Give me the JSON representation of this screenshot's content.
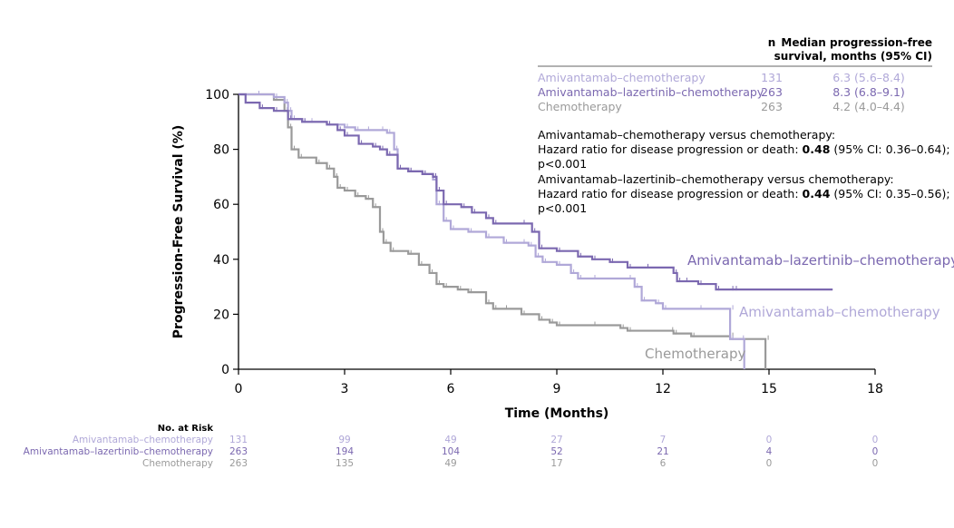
{
  "chart_data": {
    "type": "line",
    "subtype": "kaplan-meier",
    "xlabel": "Time (Months)",
    "ylabel": "Progression-Free Survival (%)",
    "xlim": [
      0,
      18
    ],
    "ylim": [
      0,
      100
    ],
    "xticks": [
      "0",
      "3",
      "6",
      "9",
      "12",
      "15",
      "18"
    ],
    "yticks": [
      "0",
      "20",
      "40",
      "60",
      "80",
      "100"
    ],
    "colors": {
      "amivantamab_chemo": "#b0a8d8",
      "lazertinib_chemo": "#7b68b0",
      "chemo": "#9a9a9a",
      "axis": "#000000"
    },
    "series": [
      {
        "key": "ami",
        "name": "Amivantamab–chemotherapy",
        "color": "#b0a8d8",
        "points": [
          [
            0,
            100
          ],
          [
            0.5,
            100
          ],
          [
            1,
            99
          ],
          [
            1.3,
            97
          ],
          [
            1.4,
            94
          ],
          [
            1.5,
            91
          ],
          [
            1.8,
            90
          ],
          [
            2,
            90
          ],
          [
            2.5,
            89
          ],
          [
            3,
            88
          ],
          [
            3.3,
            87
          ],
          [
            3.6,
            87
          ],
          [
            4,
            87
          ],
          [
            4.2,
            86
          ],
          [
            4.4,
            80
          ],
          [
            4.5,
            73
          ],
          [
            4.8,
            72
          ],
          [
            5.2,
            71
          ],
          [
            5.5,
            69
          ],
          [
            5.6,
            60
          ],
          [
            5.8,
            54
          ],
          [
            6,
            51
          ],
          [
            6.5,
            50
          ],
          [
            7,
            48
          ],
          [
            7.5,
            46
          ],
          [
            8,
            46
          ],
          [
            8.2,
            45
          ],
          [
            8.4,
            41
          ],
          [
            8.6,
            39
          ],
          [
            9,
            38
          ],
          [
            9.4,
            35
          ],
          [
            9.6,
            33
          ],
          [
            10,
            33
          ],
          [
            11,
            33
          ],
          [
            11.2,
            30
          ],
          [
            11.4,
            25
          ],
          [
            11.8,
            24
          ],
          [
            12,
            22
          ],
          [
            13,
            22
          ],
          [
            13.9,
            22
          ],
          [
            13.9,
            11
          ],
          [
            14.2,
            11
          ],
          [
            14.3,
            0
          ]
        ],
        "label": "Amivantamab–chemotherapy"
      },
      {
        "key": "laz",
        "name": "Amivantamab–lazertinib–chemotherapy",
        "color": "#7b68b0",
        "points": [
          [
            0,
            100
          ],
          [
            0.2,
            97
          ],
          [
            0.6,
            95
          ],
          [
            1,
            94
          ],
          [
            1.4,
            91
          ],
          [
            1.8,
            90
          ],
          [
            2.5,
            89
          ],
          [
            2.8,
            87
          ],
          [
            3,
            85
          ],
          [
            3.4,
            82
          ],
          [
            3.8,
            81
          ],
          [
            4,
            80
          ],
          [
            4.2,
            78
          ],
          [
            4.5,
            73
          ],
          [
            4.8,
            72
          ],
          [
            5.2,
            71
          ],
          [
            5.5,
            70
          ],
          [
            5.6,
            65
          ],
          [
            5.8,
            60
          ],
          [
            6.3,
            59
          ],
          [
            6.6,
            57
          ],
          [
            7,
            55
          ],
          [
            7.2,
            53
          ],
          [
            8,
            53
          ],
          [
            8.3,
            50
          ],
          [
            8.5,
            44
          ],
          [
            9,
            43
          ],
          [
            9.6,
            41
          ],
          [
            10,
            40
          ],
          [
            10.5,
            39
          ],
          [
            11,
            37
          ],
          [
            11.5,
            37
          ],
          [
            12.3,
            35
          ],
          [
            12.4,
            32
          ],
          [
            12.6,
            32
          ],
          [
            13,
            31
          ],
          [
            13.5,
            29
          ],
          [
            13.9,
            29
          ],
          [
            14,
            29
          ],
          [
            16.8,
            29
          ]
        ],
        "label": "Amivantamab–lazertinib–chemotherapy"
      },
      {
        "key": "chemo",
        "name": "Chemotherapy",
        "color": "#9a9a9a",
        "points": [
          [
            0,
            100
          ],
          [
            0.5,
            100
          ],
          [
            1,
            98
          ],
          [
            1.3,
            94
          ],
          [
            1.4,
            88
          ],
          [
            1.5,
            80
          ],
          [
            1.7,
            77
          ],
          [
            2.2,
            75
          ],
          [
            2.5,
            73
          ],
          [
            2.7,
            70
          ],
          [
            2.8,
            66
          ],
          [
            3,
            65
          ],
          [
            3.3,
            63
          ],
          [
            3.6,
            62
          ],
          [
            3.8,
            59
          ],
          [
            4,
            50
          ],
          [
            4.1,
            46
          ],
          [
            4.3,
            43
          ],
          [
            4.8,
            42
          ],
          [
            5.1,
            38
          ],
          [
            5.4,
            35
          ],
          [
            5.6,
            31
          ],
          [
            5.8,
            30
          ],
          [
            6.2,
            29
          ],
          [
            6.5,
            28
          ],
          [
            7,
            24
          ],
          [
            7.2,
            22
          ],
          [
            7.5,
            22
          ],
          [
            8,
            20
          ],
          [
            8.5,
            18
          ],
          [
            8.8,
            17
          ],
          [
            9,
            16
          ],
          [
            10,
            16
          ],
          [
            10.8,
            15
          ],
          [
            11,
            14
          ],
          [
            12.2,
            14
          ],
          [
            12.3,
            13
          ],
          [
            12.8,
            12
          ],
          [
            13.9,
            12
          ],
          [
            13.9,
            11
          ],
          [
            14.9,
            11
          ],
          [
            14.9,
            0
          ]
        ],
        "label": "Chemotherapy"
      }
    ],
    "legend_header": {
      "n_label": "n",
      "median_label_line1": "Median progression-free",
      "median_label_line2": "survival, months (95% CI)"
    },
    "legend_rows": [
      {
        "name": "Amivantamab–chemotherapy",
        "n": "131",
        "median": "6.3 (5.6–8.4)",
        "color": "#b0a8d8"
      },
      {
        "name": "Amivantamab–lazertinib–chemotherapy",
        "n": "263",
        "median": "8.3 (6.8–9.1)",
        "color": "#7b68b0"
      },
      {
        "name": "Chemotherapy",
        "n": "263",
        "median": "4.2 (4.0–4.4)",
        "color": "#9a9a9a"
      }
    ],
    "annotations": {
      "hr1_title": "Amivantamab–chemotherapy versus chemotherapy:",
      "hr1_text": "Hazard ratio for disease progression or death: ",
      "hr1_value": "0.48",
      "hr1_ci": " (95% CI: 0.36–0.64);",
      "hr1_p": "p<0.001",
      "hr2_title": "Amivantamab–lazertinib–chemotherapy versus chemotherapy:",
      "hr2_text": "Hazard ratio for disease progression or death: ",
      "hr2_value": "0.44",
      "hr2_ci": " (95% CI: 0.35–0.56);",
      "hr2_p": "p<0.001"
    },
    "at_risk": {
      "title": "No. at Risk",
      "times": [
        0,
        3,
        6,
        9,
        12,
        15,
        18
      ],
      "rows": [
        {
          "name": "Amivantamab–chemotherapy",
          "color": "#b0a8d8",
          "values": [
            "131",
            "99",
            "49",
            "27",
            "7",
            "0",
            "0"
          ]
        },
        {
          "name": "Amivantamab–lazertinib–chemotherapy",
          "color": "#7b68b0",
          "values": [
            "263",
            "194",
            "104",
            "52",
            "21",
            "4",
            "0"
          ]
        },
        {
          "name": "Chemotherapy",
          "color": "#9a9a9a",
          "values": [
            "263",
            "135",
            "49",
            "17",
            "6",
            "0",
            "0"
          ]
        }
      ]
    }
  }
}
